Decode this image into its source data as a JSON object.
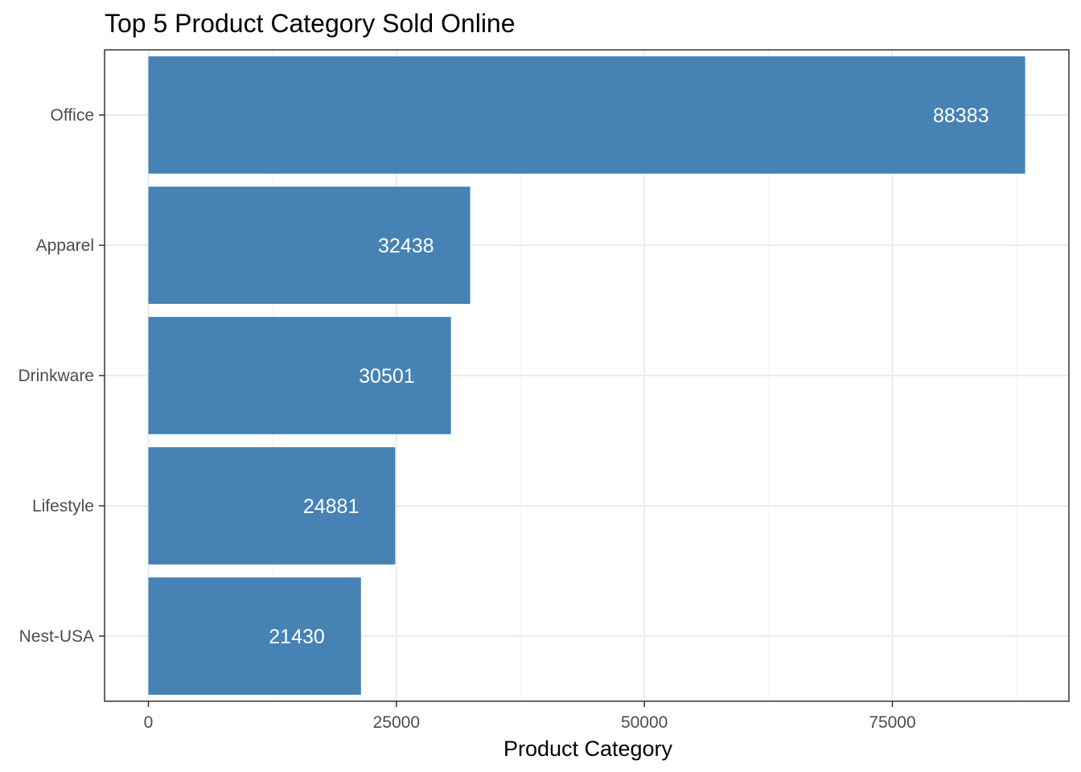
{
  "chart_data": {
    "type": "bar",
    "orientation": "horizontal",
    "title": "Top 5 Product Category Sold Online",
    "xlabel": "Product Category",
    "ylabel": "",
    "categories": [
      "Office",
      "Apparel",
      "Drinkware",
      "Lifestyle",
      "Nest-USA"
    ],
    "values": [
      88383,
      32438,
      30501,
      24881,
      21430
    ],
    "data_labels": [
      "88383",
      "32438",
      "30501",
      "24881",
      "21430"
    ],
    "x_ticks": [
      0,
      25000,
      50000,
      75000
    ],
    "x_tick_labels": [
      "0",
      "25000",
      "50000",
      "75000"
    ],
    "xlim": [
      -4420,
      92800
    ],
    "grid": true,
    "bar_color": "#4682B4"
  }
}
